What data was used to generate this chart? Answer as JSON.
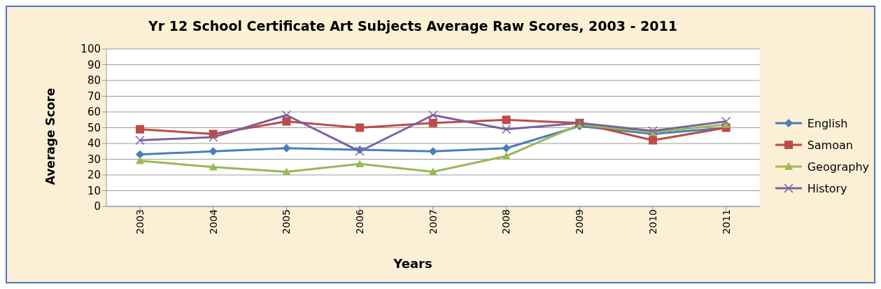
{
  "chart_data": {
    "type": "line",
    "title": "Yr 12 School Certificate Art Subjects Average Raw Scores, 2003 - 2011",
    "xlabel": "Years",
    "ylabel": "Average Score",
    "categories": [
      "2003",
      "2004",
      "2005",
      "2006",
      "2007",
      "2008",
      "2009",
      "2010",
      "2011"
    ],
    "series": [
      {
        "name": "English",
        "color": "#4a7ebb",
        "marker": "diamond",
        "values": [
          33,
          35,
          37,
          36,
          35,
          37,
          51,
          46,
          50
        ]
      },
      {
        "name": "Samoan",
        "color": "#be4b48",
        "marker": "square",
        "values": [
          49,
          46,
          54,
          50,
          53,
          55,
          53,
          42,
          50
        ]
      },
      {
        "name": "Geography",
        "color": "#98b954",
        "marker": "triangle",
        "values": [
          29,
          25,
          22,
          27,
          22,
          32,
          52,
          47,
          52
        ]
      },
      {
        "name": "History",
        "color": "#7d60a0",
        "marker": "cross",
        "values": [
          42,
          44,
          58,
          35,
          58,
          49,
          53,
          48,
          54
        ]
      }
    ],
    "ylim": [
      0,
      100
    ],
    "yticks": [
      0,
      10,
      20,
      30,
      40,
      50,
      60,
      70,
      80,
      90,
      100
    ],
    "grid": "y",
    "legend": "right"
  }
}
